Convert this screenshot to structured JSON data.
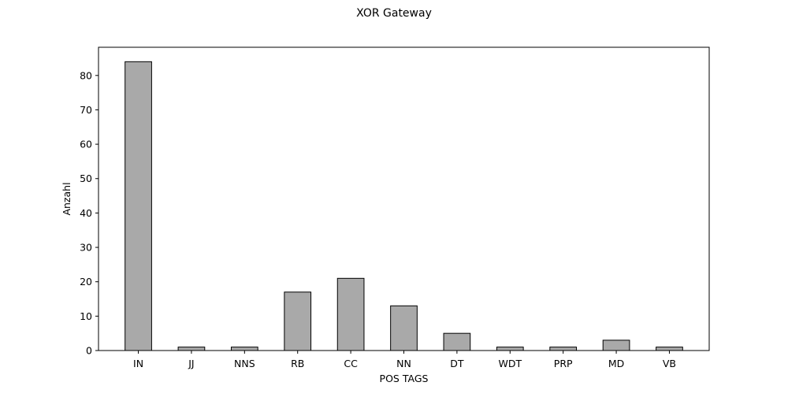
{
  "chart_data": {
    "type": "bar",
    "title": "XOR Gateway",
    "xlabel": "POS TAGS",
    "ylabel": "Anzahl",
    "categories": [
      "IN",
      "JJ",
      "NNS",
      "RB",
      "CC",
      "NN",
      "DT",
      "WDT",
      "PRP",
      "MD",
      "VB"
    ],
    "values": [
      84,
      1,
      1,
      17,
      21,
      13,
      5,
      1,
      1,
      3,
      1
    ],
    "ylim": [
      0,
      88.2
    ],
    "yticks": [
      0,
      10,
      20,
      30,
      40,
      50,
      60,
      70,
      80
    ],
    "grid": false,
    "legend": "none",
    "colors": {
      "bar_fill": "#a9a9a9",
      "bar_edge": "#000000",
      "axis": "#000000"
    }
  }
}
